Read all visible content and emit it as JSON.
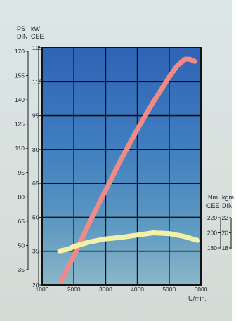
{
  "chart_data": {
    "type": "line",
    "title": "",
    "xlabel": "U/min.",
    "xlim": [
      1000,
      6000
    ],
    "x_ticks": [
      "1000",
      "2000",
      "3000",
      "4000",
      "5000",
      "6000"
    ],
    "grid": true,
    "left_axes": [
      {
        "unit": "PS",
        "standard": "DIN",
        "ticks": [
          "170",
          "155",
          "140",
          "125",
          "110",
          "95",
          "80",
          "65",
          "50",
          "35"
        ]
      },
      {
        "unit": "kW",
        "standard": "CEE",
        "ticks": [
          "125",
          "110",
          "95",
          "80",
          "65",
          "50",
          "35",
          "20"
        ]
      }
    ],
    "right_axes": [
      {
        "unit": "Nm",
        "standard": "CEE",
        "ticks": [
          "220",
          "200",
          "180"
        ]
      },
      {
        "unit": "kgm",
        "standard": "DIN",
        "ticks": [
          "22",
          "20",
          "18"
        ]
      }
    ],
    "ylim_kw": [
      20,
      125
    ],
    "ylim_nm": [
      180,
      220
    ],
    "series": [
      {
        "axis": "kW",
        "color": "#f08a86",
        "x": [
          1600,
          2000,
          2500,
          3000,
          3500,
          4000,
          4500,
          5000,
          5250,
          5500,
          5650,
          5800
        ],
        "values": [
          22,
          33,
          48,
          62,
          76,
          89,
          101,
          112,
          117,
          120,
          120,
          119
        ]
      },
      {
        "axis": "Nm",
        "color": "#f3f0a8",
        "x": [
          1550,
          1800,
          2000,
          2500,
          3000,
          3500,
          4000,
          4500,
          5000,
          5500,
          5900
        ],
        "values": [
          176,
          178,
          182,
          188,
          192,
          194,
          197,
          200,
          199,
          195,
          190
        ]
      }
    ]
  }
}
